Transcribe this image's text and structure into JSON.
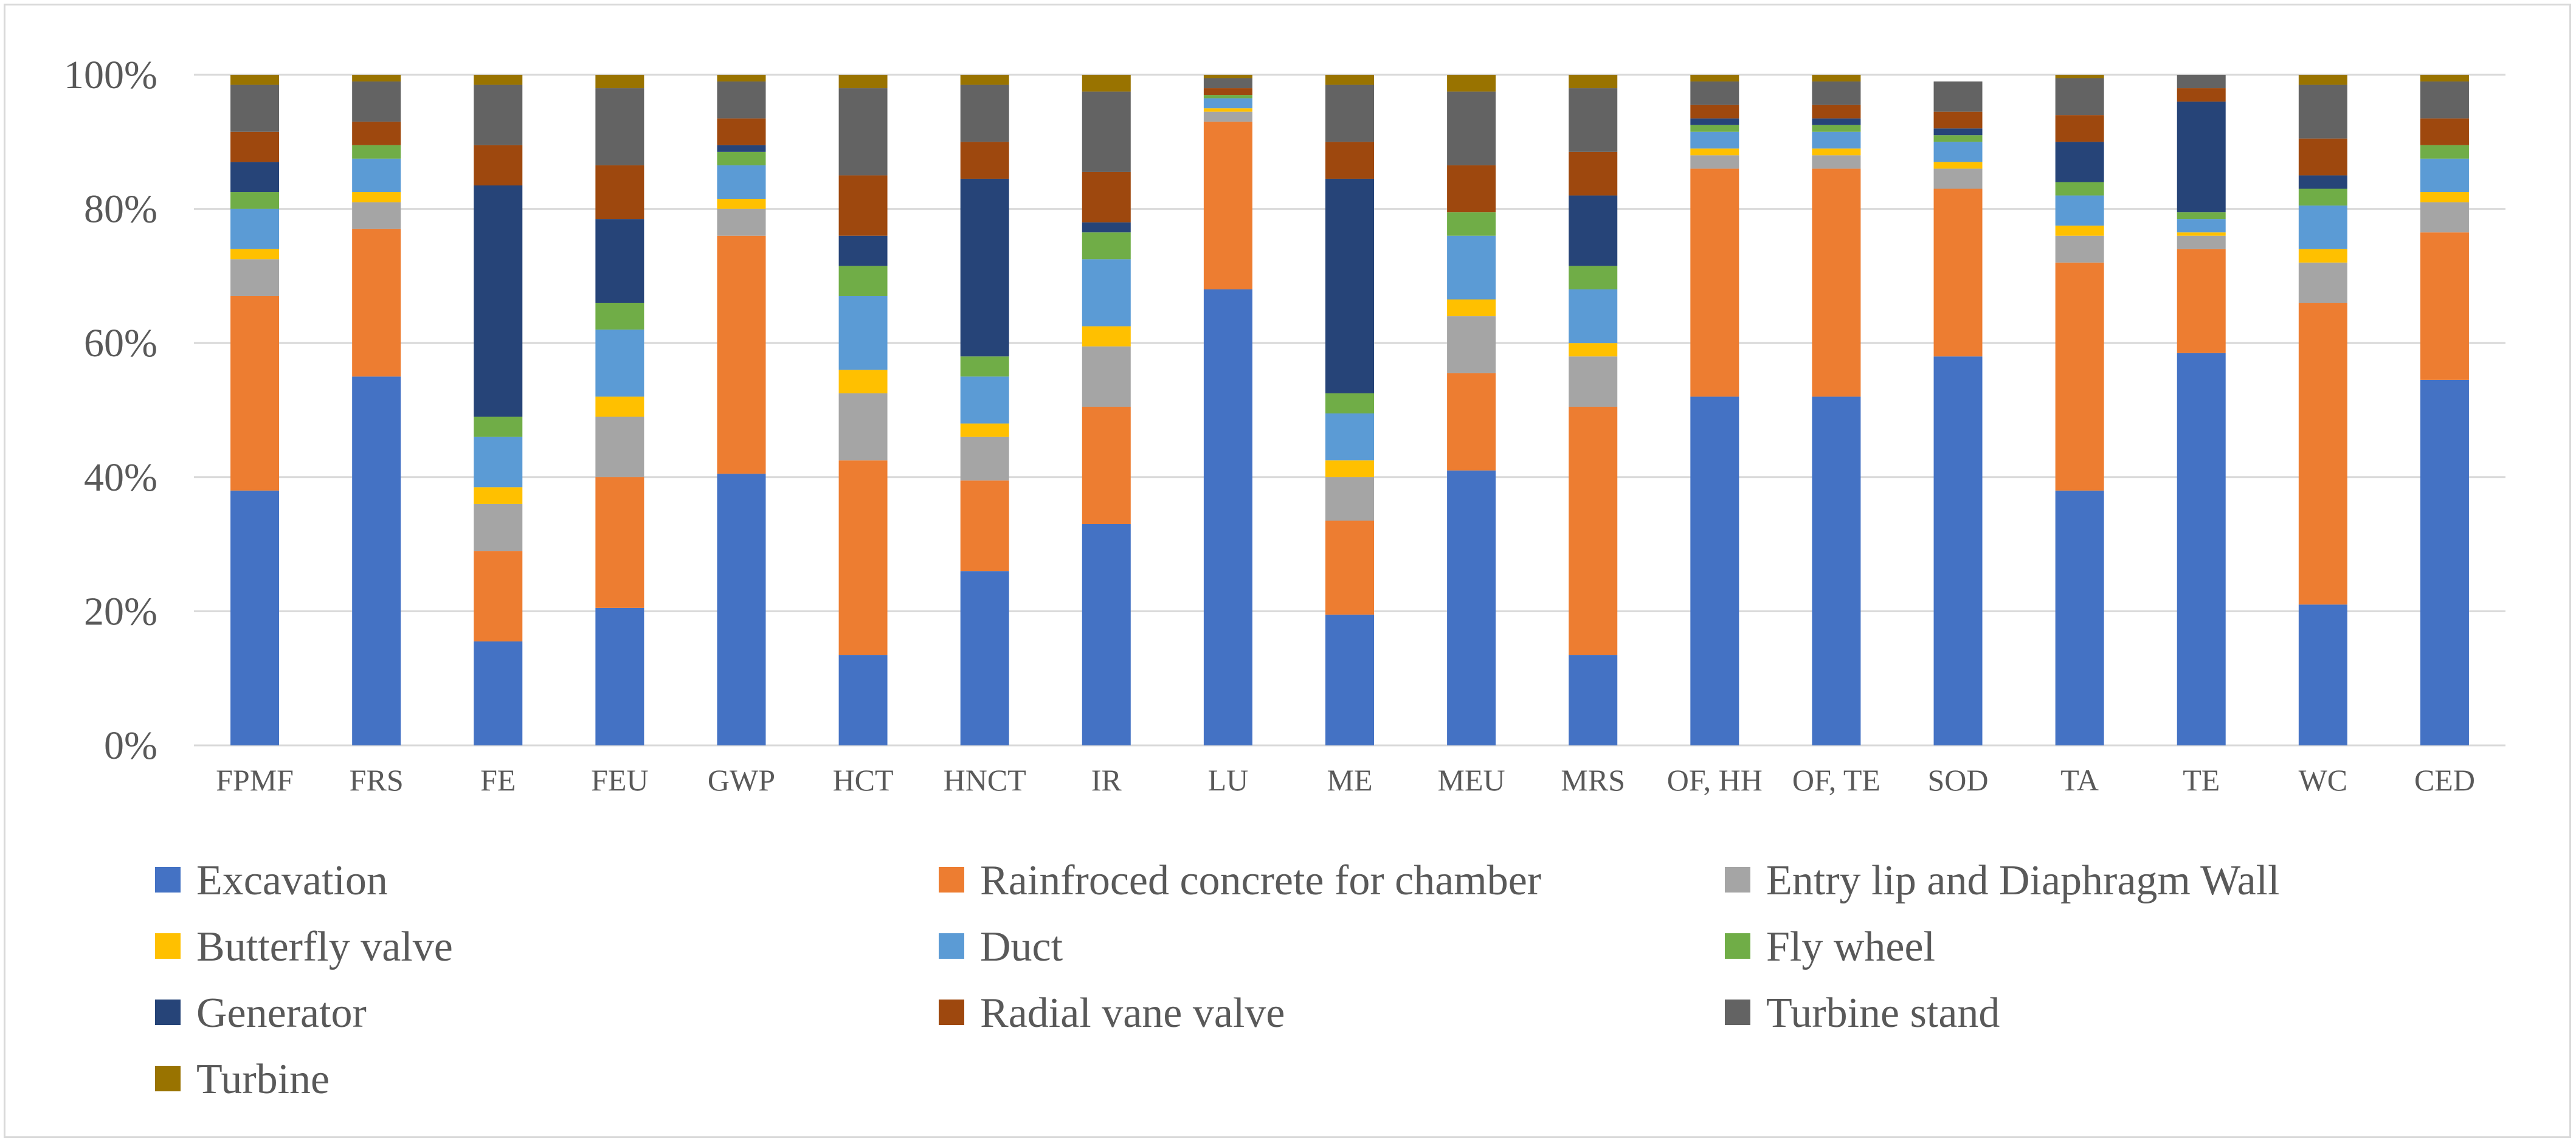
{
  "chart_data": {
    "type": "bar",
    "stacked": true,
    "percent": true,
    "title": "",
    "xlabel": "",
    "ylabel": "",
    "ylim": [
      0,
      100
    ],
    "y_ticks": [
      {
        "value": 0,
        "label": "0%"
      },
      {
        "value": 20,
        "label": "20%"
      },
      {
        "value": 40,
        "label": "40%"
      },
      {
        "value": 60,
        "label": "60%"
      },
      {
        "value": 80,
        "label": "80%"
      },
      {
        "value": 100,
        "label": "100%"
      }
    ],
    "grid": true,
    "legend_position": "bottom",
    "categories": [
      "FPMF",
      "FRS",
      "FE",
      "FEU",
      "GWP",
      "HCT",
      "HNCT",
      "IR",
      "LU",
      "ME",
      "MEU",
      "MRS",
      "OF, HH",
      "OF, TE",
      "SOD",
      "TA",
      "TE",
      "WC",
      "CED"
    ],
    "series": [
      {
        "name": "Excavation",
        "color": "#4472c4",
        "values": [
          38,
          55,
          15.5,
          20.5,
          40.5,
          13.5,
          26,
          33,
          68,
          19.5,
          41,
          13.5,
          52,
          52,
          58,
          38,
          58.5,
          21,
          54.5
        ]
      },
      {
        "name": "Rainfroced concrete for chamber",
        "color": "#ed7d31",
        "values": [
          29,
          22,
          13.5,
          19.5,
          35.5,
          29,
          13.5,
          17.5,
          25,
          14,
          14.5,
          37,
          34,
          34,
          25,
          34,
          15.5,
          45,
          22
        ]
      },
      {
        "name": "Entry lip and Diaphragm Wall",
        "color": "#a5a5a5",
        "values": [
          5.5,
          4,
          7,
          9,
          4,
          10,
          6.5,
          9,
          1.5,
          6.5,
          8.5,
          7.5,
          2,
          2,
          3,
          4,
          2,
          6,
          4.5
        ]
      },
      {
        "name": "Butterfly valve",
        "color": "#ffc000",
        "values": [
          1.5,
          1.5,
          2.5,
          3,
          1.5,
          3.5,
          2,
          3,
          0.5,
          2.5,
          2.5,
          2,
          1,
          1,
          1,
          1.5,
          0.5,
          2,
          1.5
        ]
      },
      {
        "name": "Duct",
        "color": "#5b9bd5",
        "values": [
          6,
          5,
          7.5,
          10,
          5,
          11,
          7,
          10,
          1.5,
          7,
          9.5,
          8,
          2.5,
          2.5,
          3,
          4.5,
          2,
          6.5,
          5
        ]
      },
      {
        "name": "Fly wheel",
        "color": "#70ad47",
        "values": [
          2.5,
          2,
          3,
          4,
          2,
          4.5,
          3,
          4,
          0.5,
          3,
          3.5,
          3.5,
          1,
          1,
          1,
          2,
          1,
          2.5,
          2
        ]
      },
      {
        "name": "Generator",
        "color": "#264478",
        "values": [
          4.5,
          0,
          34.5,
          12.5,
          1,
          4.5,
          26.5,
          1.5,
          0,
          32,
          0,
          10.5,
          1,
          1,
          1,
          6,
          16.5,
          2,
          0
        ]
      },
      {
        "name": "Radial vane valve",
        "color": "#9e480e",
        "values": [
          4.5,
          3.5,
          6,
          8,
          4,
          9,
          5.5,
          7.5,
          1,
          5.5,
          7,
          6.5,
          2,
          2,
          2.5,
          4,
          2,
          5.5,
          4
        ]
      },
      {
        "name": "Turbine stand",
        "color": "#636363",
        "values": [
          7,
          6,
          9,
          11.5,
          5.5,
          13,
          8.5,
          12,
          1.5,
          8.5,
          11,
          9.5,
          3.5,
          3.5,
          4.5,
          5.5,
          2.5,
          8,
          5.5
        ]
      },
      {
        "name": "Turbine",
        "color": "#997300",
        "values": [
          1.5,
          1,
          2,
          2.5,
          1,
          2.5,
          1.5,
          2.5,
          0.5,
          2,
          2.5,
          2,
          1,
          1,
          0,
          1,
          0,
          1.5,
          1
        ]
      }
    ]
  }
}
